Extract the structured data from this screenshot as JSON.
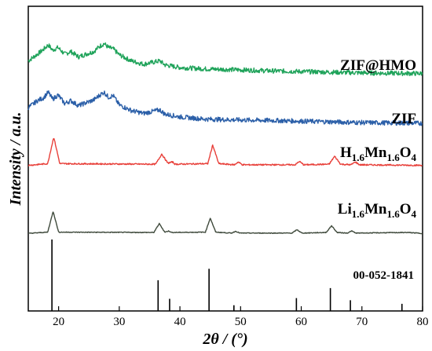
{
  "chart_data": {
    "type": "line",
    "xlabel": "2θ / (°)",
    "ylabel": "Intensity / a.u.",
    "xlim": [
      15,
      80
    ],
    "x_ticks": [
      20,
      30,
      40,
      50,
      60,
      70,
      80
    ],
    "y_ticks_shown": false,
    "grid": false,
    "series": [
      {
        "name": "ZIF@HMO",
        "color": "#1fa35a",
        "noise": 0.35,
        "x": [
          15,
          16.5,
          17.5,
          18.3,
          19.0,
          19.9,
          21.0,
          22.0,
          23.3,
          24.5,
          25.8,
          26.8,
          27.5,
          28.2,
          29.0,
          30.0,
          32.0,
          34.0,
          36.7,
          37.5,
          40.0,
          44.0,
          48.0,
          55.0,
          60.0,
          65.0,
          70.0,
          75.0,
          80.0
        ],
        "y": [
          3.0,
          4.0,
          4.7,
          5.4,
          4.6,
          5.0,
          4.0,
          4.4,
          3.6,
          4.0,
          4.4,
          5.2,
          5.6,
          5.0,
          4.8,
          3.9,
          3.0,
          2.5,
          3.0,
          2.4,
          2.0,
          1.8,
          1.7,
          1.5,
          1.4,
          1.3,
          1.2,
          1.15,
          1.1
        ]
      },
      {
        "name": "ZIF",
        "color": "#2b5fa8",
        "noise": 0.33,
        "x": [
          15,
          16.5,
          17.5,
          18.3,
          19.0,
          19.9,
          21.0,
          22.0,
          23.3,
          24.5,
          25.8,
          26.8,
          27.5,
          28.2,
          29.0,
          30.0,
          32.0,
          34.0,
          36.7,
          37.5,
          40.0,
          44.0,
          48.0,
          55.0,
          60.0,
          65.0,
          70.0,
          75.0,
          80.0
        ],
        "y": [
          3.2,
          4.2,
          4.6,
          5.4,
          4.4,
          5.0,
          3.8,
          4.2,
          3.5,
          3.9,
          4.3,
          5.0,
          5.4,
          4.7,
          4.9,
          3.6,
          2.8,
          2.4,
          2.9,
          2.3,
          1.9,
          1.6,
          1.5,
          1.4,
          1.3,
          1.2,
          1.1,
          1.05,
          1.0
        ]
      },
      {
        "name": "H1.6Mn1.6O4",
        "label_main": "H",
        "label_sub1": "1.6",
        "label_mid": "Mn",
        "label_sub2": "1.6",
        "label_end": "O",
        "label_sub3": "4",
        "color": "#e8403a",
        "noise": 0.12,
        "x": [
          15,
          18.2,
          19.2,
          20.2,
          36.0,
          37.0,
          38.0,
          38.8,
          39.2,
          44.6,
          45.4,
          46.4,
          49.0,
          49.6,
          50.3,
          59.0,
          59.7,
          60.4,
          64.6,
          65.5,
          66.5,
          68.2,
          68.9,
          69.6,
          80.0
        ],
        "y": [
          0.2,
          0.5,
          5.2,
          0.5,
          0.4,
          2.2,
          0.6,
          0.8,
          0.4,
          0.5,
          3.8,
          0.5,
          0.3,
          0.8,
          0.3,
          0.3,
          0.9,
          0.3,
          0.4,
          1.8,
          0.4,
          0.3,
          0.8,
          0.3,
          0.2
        ]
      },
      {
        "name": "Li1.6Mn1.6O4",
        "label_main": "Li",
        "label_sub1": "1.6",
        "label_mid": "Mn",
        "label_sub2": "1.6",
        "label_end": "O",
        "label_sub3": "4",
        "color": "#3f4a3c",
        "noise": 0.12,
        "x": [
          15,
          18.2,
          19.1,
          20.0,
          35.7,
          36.6,
          37.5,
          38.2,
          38.6,
          44.2,
          45.0,
          45.9,
          48.5,
          49.2,
          49.9,
          58.5,
          59.3,
          60.1,
          64.1,
          65.0,
          65.9,
          67.6,
          68.3,
          69.0,
          77.5,
          80.0
        ],
        "y": [
          0.2,
          0.6,
          7.4,
          0.6,
          0.5,
          3.4,
          0.6,
          1.0,
          0.5,
          0.6,
          5.2,
          0.6,
          0.3,
          0.9,
          0.3,
          0.3,
          1.4,
          0.3,
          0.5,
          2.7,
          0.5,
          0.3,
          1.0,
          0.3,
          0.5,
          0.2
        ]
      }
    ],
    "reference": {
      "name": "00-052-1841",
      "positions": [
        18.9,
        36.4,
        38.3,
        44.8,
        48.9,
        59.2,
        64.8,
        68.1,
        76.6
      ],
      "intensities": [
        100,
        43,
        17,
        59,
        8,
        18,
        32,
        15,
        10
      ]
    }
  }
}
